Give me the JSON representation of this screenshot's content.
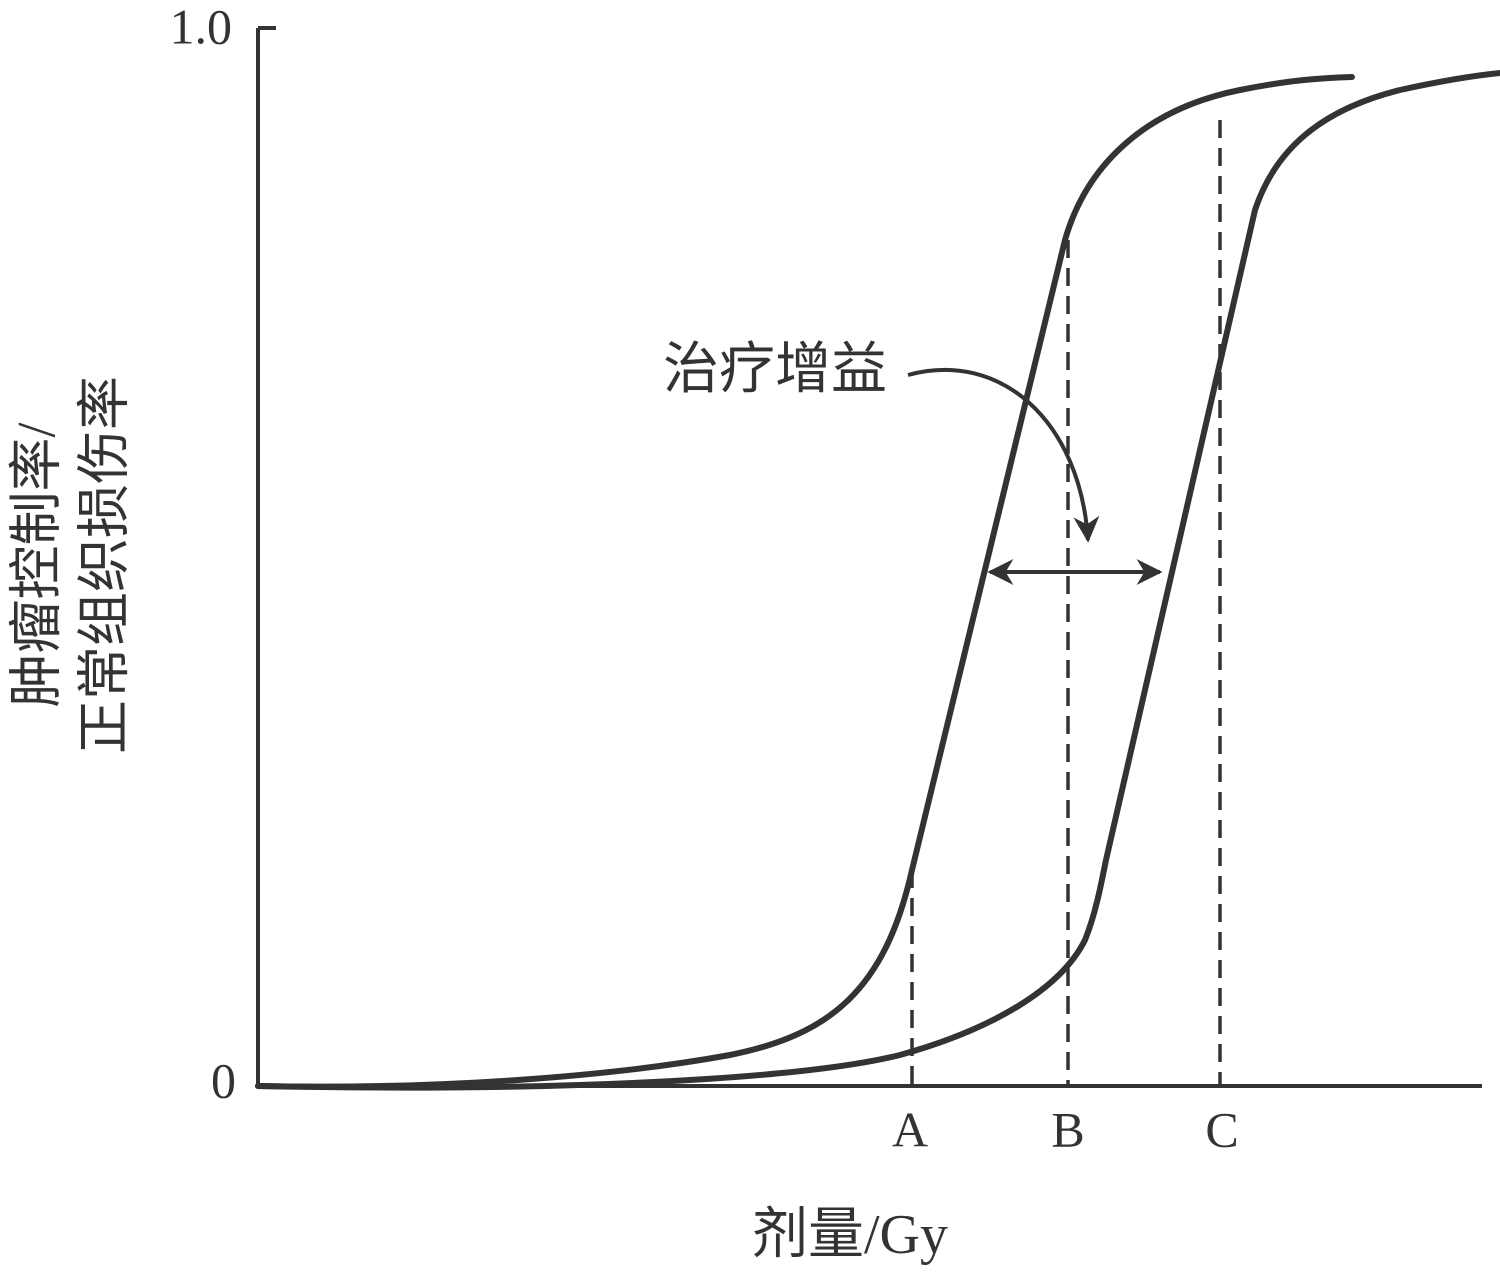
{
  "y_axis": {
    "label_lines": [
      "肿瘤控制率/",
      "正常组织损伤率"
    ],
    "ticks": [
      "1.0",
      "0"
    ]
  },
  "x_axis": {
    "label": "剂量/Gy",
    "markers": [
      "A",
      "B",
      "C"
    ]
  },
  "annotation": "治疗增益"
}
